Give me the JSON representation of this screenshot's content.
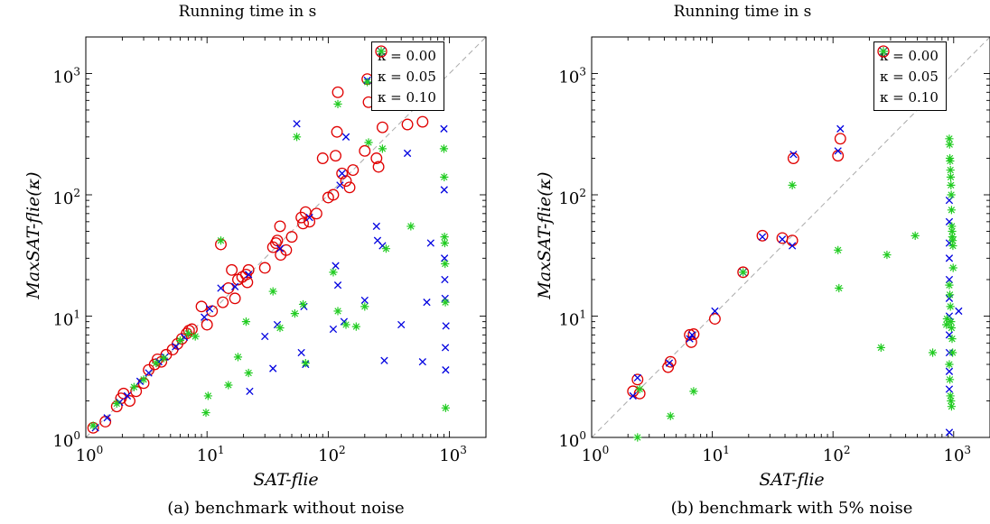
{
  "chart_data": [
    {
      "type": "scatter",
      "title": "Running time in s",
      "caption": "(a) benchmark without noise",
      "xlabel": "SAT-flie",
      "ylabel": "MaxSAT-flie(κ)",
      "xscale": "log",
      "yscale": "log",
      "xlim": [
        1,
        2000
      ],
      "ylim": [
        1,
        2000
      ],
      "xticks": [
        "10^0",
        "10^1",
        "10^2",
        "10^3"
      ],
      "yticks": [
        "10^0",
        "10^1",
        "10^2",
        "10^3"
      ],
      "diagonal": true,
      "legend_position": "top-right",
      "series": [
        {
          "name": "κ = 0.00",
          "marker": "circle",
          "color": "#e00000",
          "points": [
            [
              1.15,
              1.2
            ],
            [
              1.45,
              1.35
            ],
            [
              1.8,
              1.8
            ],
            [
              1.95,
              2.1
            ],
            [
              2.05,
              2.3
            ],
            [
              2.3,
              2.0
            ],
            [
              2.6,
              2.4
            ],
            [
              3.0,
              2.8
            ],
            [
              3.3,
              3.6
            ],
            [
              3.7,
              4.0
            ],
            [
              3.9,
              4.4
            ],
            [
              4.2,
              4.2
            ],
            [
              4.6,
              4.8
            ],
            [
              5.2,
              5.3
            ],
            [
              5.7,
              5.9
            ],
            [
              6.2,
              6.5
            ],
            [
              6.8,
              7.2
            ],
            [
              7.1,
              7.6
            ],
            [
              7.5,
              7.8
            ],
            [
              9.0,
              12.0
            ],
            [
              10.0,
              8.5
            ],
            [
              11.0,
              11.0
            ],
            [
              13.0,
              39.0
            ],
            [
              13.5,
              13.0
            ],
            [
              15.0,
              17.0
            ],
            [
              16.0,
              24.0
            ],
            [
              17.0,
              14.0
            ],
            [
              18.0,
              20.0
            ],
            [
              19.5,
              21.0
            ],
            [
              21.0,
              22.0
            ],
            [
              21.5,
              19.0
            ],
            [
              22.0,
              24.0
            ],
            [
              30.0,
              25.0
            ],
            [
              35.0,
              37.0
            ],
            [
              37.0,
              40.0
            ],
            [
              38.0,
              42.0
            ],
            [
              40.0,
              55.0
            ],
            [
              40.5,
              32.0
            ],
            [
              45.0,
              35.0
            ],
            [
              50.0,
              45.0
            ],
            [
              60.0,
              65.0
            ],
            [
              62.0,
              58.0
            ],
            [
              65.0,
              72.0
            ],
            [
              70.0,
              60.0
            ],
            [
              80.0,
              70.0
            ],
            [
              90.0,
              200.0
            ],
            [
              100.0,
              95.0
            ],
            [
              110.0,
              100.0
            ],
            [
              115.0,
              210.0
            ],
            [
              118.0,
              330.0
            ],
            [
              120.0,
              700.0
            ],
            [
              130.0,
              150.0
            ],
            [
              140.0,
              130.0
            ],
            [
              150.0,
              115.0
            ],
            [
              160.0,
              160.0
            ],
            [
              200.0,
              230.0
            ],
            [
              210.0,
              900.0
            ],
            [
              215.0,
              580.0
            ],
            [
              250.0,
              200.0
            ],
            [
              260.0,
              170.0
            ],
            [
              280.0,
              360.0
            ],
            [
              450.0,
              380.0
            ],
            [
              600.0,
              400.0
            ]
          ]
        },
        {
          "name": "κ = 0.05",
          "marker": "cross",
          "color": "#0000e0",
          "points": [
            [
              1.2,
              1.2
            ],
            [
              1.5,
              1.45
            ],
            [
              1.9,
              1.95
            ],
            [
              2.2,
              2.2
            ],
            [
              2.8,
              2.9
            ],
            [
              3.3,
              3.4
            ],
            [
              4.0,
              4.2
            ],
            [
              4.5,
              4.6
            ],
            [
              5.5,
              5.6
            ],
            [
              6.5,
              6.7
            ],
            [
              9.5,
              9.8
            ],
            [
              10.5,
              11.5
            ],
            [
              13.0,
              17.0
            ],
            [
              17.0,
              17.5
            ],
            [
              22.0,
              22.0
            ],
            [
              22.5,
              2.4
            ],
            [
              30.0,
              6.8
            ],
            [
              35.0,
              3.7
            ],
            [
              38.0,
              8.5
            ],
            [
              40.0,
              36.0
            ],
            [
              55.0,
              385.0
            ],
            [
              60.0,
              5.0
            ],
            [
              63.0,
              12.0
            ],
            [
              65.0,
              4.0
            ],
            [
              70.0,
              65.0
            ],
            [
              110.0,
              7.8
            ],
            [
              115.0,
              26.0
            ],
            [
              120.0,
              18.0
            ],
            [
              125.0,
              120.0
            ],
            [
              130.0,
              150.0
            ],
            [
              135.0,
              9.0
            ],
            [
              140.0,
              300.0
            ],
            [
              200.0,
              13.5
            ],
            [
              210.0,
              880.0
            ],
            [
              250.0,
              55.0
            ],
            [
              255.0,
              42.0
            ],
            [
              280.0,
              38.0
            ],
            [
              290.0,
              4.3
            ],
            [
              400.0,
              8.5
            ],
            [
              450.0,
              220.0
            ],
            [
              600.0,
              4.2
            ],
            [
              650.0,
              13.0
            ],
            [
              700.0,
              40.0
            ],
            [
              900.0,
              350.0
            ],
            [
              905.0,
              110.0
            ],
            [
              910.0,
              30.0
            ],
            [
              915.0,
              20.0
            ],
            [
              920.0,
              14.0
            ],
            [
              925.0,
              5.5
            ],
            [
              930.0,
              3.6
            ],
            [
              935.0,
              8.3
            ]
          ]
        },
        {
          "name": "κ = 0.10",
          "marker": "star",
          "color": "#22cc22",
          "points": [
            [
              1.15,
              1.25
            ],
            [
              1.8,
              1.9
            ],
            [
              2.5,
              2.6
            ],
            [
              3.0,
              3.0
            ],
            [
              3.8,
              4.1
            ],
            [
              4.4,
              4.5
            ],
            [
              6.0,
              6.3
            ],
            [
              7.0,
              7.2
            ],
            [
              8.0,
              6.8
            ],
            [
              9.8,
              1.6
            ],
            [
              10.2,
              2.2
            ],
            [
              13.0,
              42.0
            ],
            [
              15.0,
              2.7
            ],
            [
              18.0,
              4.6
            ],
            [
              21.0,
              9.0
            ],
            [
              22.0,
              3.4
            ],
            [
              35.0,
              16.0
            ],
            [
              40.0,
              8.0
            ],
            [
              53.0,
              10.5
            ],
            [
              55.0,
              300.0
            ],
            [
              62.0,
              12.5
            ],
            [
              65.0,
              4.1
            ],
            [
              110.0,
              23.0
            ],
            [
              120.0,
              11.0
            ],
            [
              140.0,
              8.5
            ],
            [
              170.0,
              8.2
            ],
            [
              200.0,
              12.0
            ],
            [
              215.0,
              270.0
            ],
            [
              280.0,
              240.0
            ],
            [
              300.0,
              36.0
            ],
            [
              480.0,
              55.0
            ],
            [
              900.0,
              240.0
            ],
            [
              905.0,
              140.0
            ],
            [
              910.0,
              45.0
            ],
            [
              915.0,
              40.0
            ],
            [
              920.0,
              27.0
            ],
            [
              925.0,
              13.0
            ],
            [
              930.0,
              1.75
            ],
            [
              120.0,
              560.0
            ],
            [
              210.0,
              850.0
            ]
          ]
        }
      ]
    },
    {
      "type": "scatter",
      "title": "Running time in s",
      "caption": "(b) benchmark with 5% noise",
      "xlabel": "SAT-flie",
      "ylabel": "MaxSAT-flie(κ)",
      "xscale": "log",
      "yscale": "log",
      "xlim": [
        1,
        2000
      ],
      "ylim": [
        1,
        2000
      ],
      "xticks": [
        "10^0",
        "10^1",
        "10^2",
        "10^3"
      ],
      "yticks": [
        "10^0",
        "10^1",
        "10^2",
        "10^3"
      ],
      "diagonal": true,
      "legend_position": "top-right",
      "series": [
        {
          "name": "κ = 0.00",
          "marker": "circle",
          "color": "#e00000",
          "points": [
            [
              2.2,
              2.4
            ],
            [
              2.4,
              3.0
            ],
            [
              2.5,
              2.3
            ],
            [
              4.3,
              3.8
            ],
            [
              4.5,
              4.2
            ],
            [
              6.5,
              7.0
            ],
            [
              6.7,
              6.1
            ],
            [
              7.0,
              7.1
            ],
            [
              10.5,
              9.5
            ],
            [
              18.0,
              23.0
            ],
            [
              26.0,
              46.0
            ],
            [
              38.0,
              44.0
            ],
            [
              46.0,
              42.0
            ],
            [
              47.0,
              200.0
            ],
            [
              110.0,
              210.0
            ],
            [
              115.0,
              290.0
            ],
            [
              250.0,
              900.0
            ]
          ]
        },
        {
          "name": "κ = 0.05",
          "marker": "cross",
          "color": "#0000e0",
          "points": [
            [
              2.2,
              2.2
            ],
            [
              2.4,
              3.1
            ],
            [
              4.4,
              4.1
            ],
            [
              6.5,
              6.5
            ],
            [
              6.8,
              7.0
            ],
            [
              10.5,
              11.0
            ],
            [
              18.0,
              23.0
            ],
            [
              26.0,
              45.0
            ],
            [
              38.0,
              43.0
            ],
            [
              46.0,
              38.0
            ],
            [
              47.0,
              215.0
            ],
            [
              110.0,
              230.0
            ],
            [
              115.0,
              350.0
            ],
            [
              250.0,
              900.0
            ],
            [
              920.0,
              90.0
            ],
            [
              920.0,
              60.0
            ],
            [
              920.0,
              40.0
            ],
            [
              920.0,
              30.0
            ],
            [
              920.0,
              20.0
            ],
            [
              920.0,
              14.0
            ],
            [
              920.0,
              10.0
            ],
            [
              920.0,
              7.0
            ],
            [
              920.0,
              5.0
            ],
            [
              920.0,
              3.5
            ],
            [
              920.0,
              2.5
            ],
            [
              920.0,
              1.1
            ],
            [
              1100.0,
              11.0
            ]
          ]
        },
        {
          "name": "κ = 0.10",
          "marker": "star",
          "color": "#22cc22",
          "points": [
            [
              2.4,
              1.0
            ],
            [
              2.5,
              2.5
            ],
            [
              4.5,
              1.5
            ],
            [
              7.0,
              2.4
            ],
            [
              18.0,
              23.0
            ],
            [
              46.0,
              120.0
            ],
            [
              110.0,
              35.0
            ],
            [
              112.0,
              17.0
            ],
            [
              250.0,
              5.5
            ],
            [
              280.0,
              32.0
            ],
            [
              480.0,
              46.0
            ],
            [
              670.0,
              5.0
            ],
            [
              920.0,
              290.0
            ],
            [
              925.0,
              260.0
            ],
            [
              930.0,
              200.0
            ],
            [
              935.0,
              190.0
            ],
            [
              940.0,
              160.0
            ],
            [
              945.0,
              140.0
            ],
            [
              950.0,
              120.0
            ],
            [
              955.0,
              100.0
            ],
            [
              960.0,
              75.0
            ],
            [
              965.0,
              55.0
            ],
            [
              970.0,
              50.0
            ],
            [
              975.0,
              45.0
            ],
            [
              980.0,
              42.0
            ],
            [
              985.0,
              38.0
            ],
            [
              990.0,
              25.0
            ],
            [
              920.0,
              18.0
            ],
            [
              930.0,
              15.0
            ],
            [
              940.0,
              12.0
            ],
            [
              950.0,
              9.0
            ],
            [
              960.0,
              8.0
            ],
            [
              970.0,
              6.5
            ],
            [
              980.0,
              5.0
            ],
            [
              920.0,
              4.0
            ],
            [
              930.0,
              3.0
            ],
            [
              940.0,
              2.2
            ],
            [
              950.0,
              2.0
            ],
            [
              960.0,
              1.8
            ],
            [
              880.0,
              9.5
            ],
            [
              870.0,
              8.5
            ]
          ]
        }
      ]
    }
  ]
}
